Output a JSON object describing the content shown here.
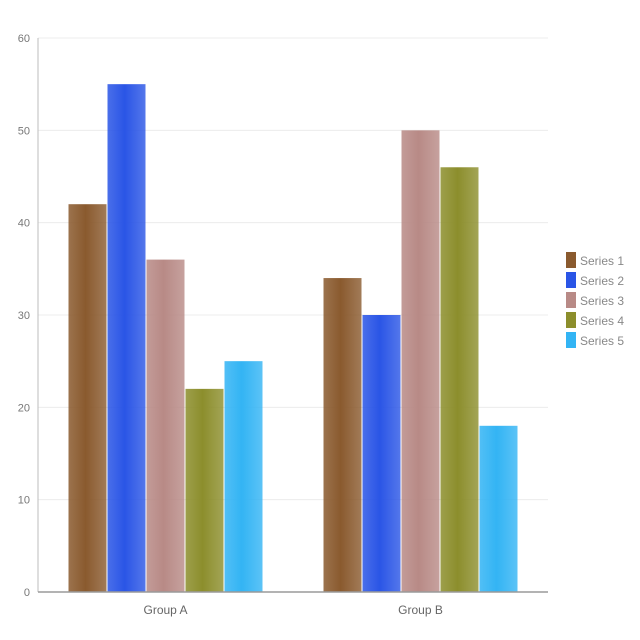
{
  "chart_data": {
    "type": "bar",
    "title": "",
    "xlabel": "",
    "ylabel": "",
    "categories": [
      "Group A",
      "Group B"
    ],
    "ylim": [
      0,
      60
    ],
    "yticks": [
      "0",
      "10",
      "20",
      "30",
      "40",
      "50",
      "60"
    ],
    "grid": true,
    "legend_position": "right",
    "series": [
      {
        "name": "Series 1",
        "color": "#8a5a2e",
        "values": [
          42,
          34
        ]
      },
      {
        "name": "Series 2",
        "color": "#2a55e6",
        "values": [
          55,
          30
        ]
      },
      {
        "name": "Series 3",
        "color": "#b88a86",
        "values": [
          36,
          50
        ]
      },
      {
        "name": "Series 4",
        "color": "#8c8e2c",
        "values": [
          22,
          46
        ]
      },
      {
        "name": "Series 5",
        "color": "#33b4f4",
        "values": [
          25,
          18
        ]
      }
    ]
  }
}
